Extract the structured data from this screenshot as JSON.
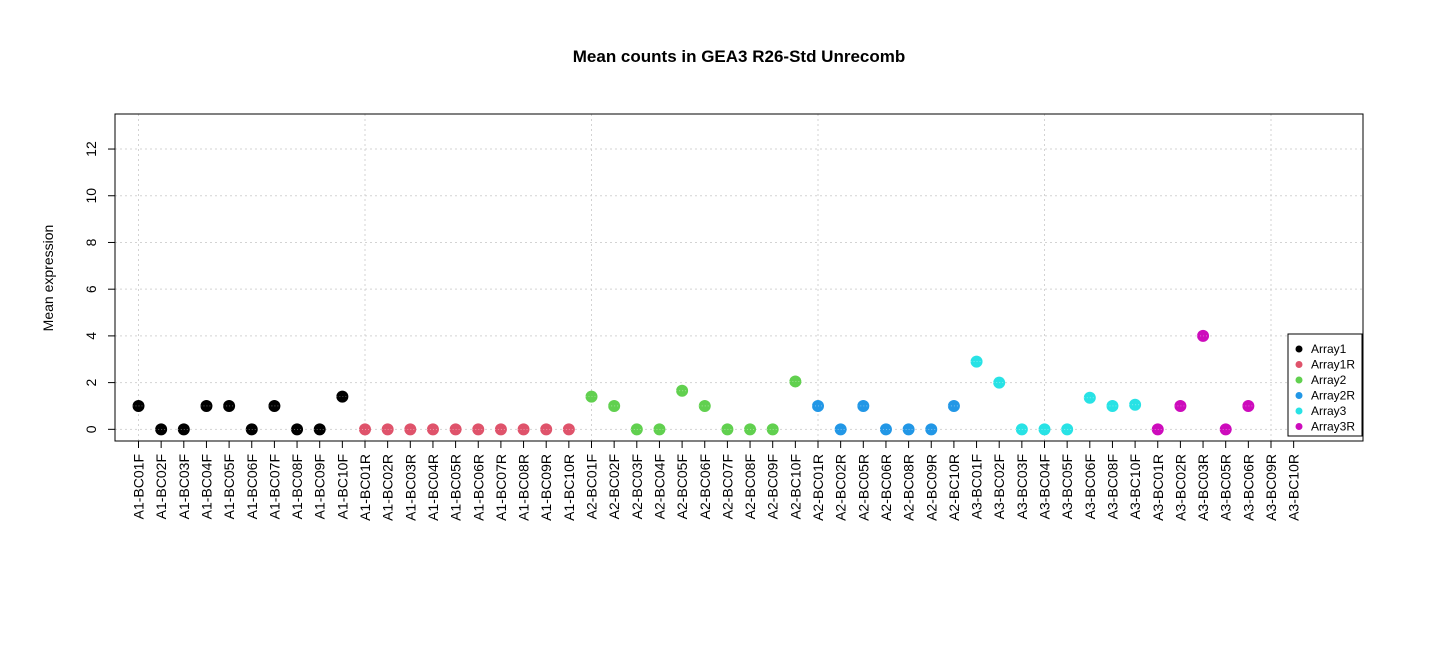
{
  "chart_data": {
    "type": "scatter",
    "title": "Mean counts in GEA3 R26-Std Unrecomb",
    "xlabel": "",
    "ylabel": "Mean expression",
    "ylim": [
      -0.5,
      13.5
    ],
    "yticks": [
      0,
      2,
      4,
      6,
      8,
      10,
      12
    ],
    "grid": true,
    "legend_position": "right",
    "categories": [
      "A1-BC01F",
      "A1-BC02F",
      "A1-BC03F",
      "A1-BC04F",
      "A1-BC05F",
      "A1-BC06F",
      "A1-BC07F",
      "A1-BC08F",
      "A1-BC09F",
      "A1-BC10F",
      "A1-BC01R",
      "A1-BC02R",
      "A1-BC03R",
      "A1-BC04R",
      "A1-BC05R",
      "A1-BC06R",
      "A1-BC07R",
      "A1-BC08R",
      "A1-BC09R",
      "A1-BC10R",
      "A2-BC01F",
      "A2-BC02F",
      "A2-BC03F",
      "A2-BC04F",
      "A2-BC05F",
      "A2-BC06F",
      "A2-BC07F",
      "A2-BC08F",
      "A2-BC09F",
      "A2-BC10F",
      "A2-BC01R",
      "A2-BC02R",
      "A2-BC05R",
      "A2-BC06R",
      "A2-BC08R",
      "A2-BC09R",
      "A2-BC10R",
      "A3-BC01F",
      "A3-BC02F",
      "A3-BC03F",
      "A3-BC04F",
      "A3-BC05F",
      "A3-BC06F",
      "A3-BC08F",
      "A3-BC10F",
      "A3-BC01R",
      "A3-BC02R",
      "A3-BC03R",
      "A3-BC05R",
      "A3-BC06R",
      "A3-BC09R",
      "A3-BC10R"
    ],
    "series": [
      {
        "name": "Array1",
        "color": "#000000",
        "start": 0,
        "values": [
          1,
          0,
          0,
          1,
          1,
          0,
          1,
          0,
          0,
          1.4
        ]
      },
      {
        "name": "Array1R",
        "color": "#DF536B",
        "start": 10,
        "values": [
          0,
          0,
          0,
          0,
          0,
          0,
          0,
          0,
          0,
          0
        ]
      },
      {
        "name": "Array2",
        "color": "#61D04F",
        "start": 20,
        "values": [
          1.4,
          1,
          0,
          0,
          1.65,
          1,
          0,
          0,
          0,
          2.05
        ]
      },
      {
        "name": "Array2R",
        "color": "#2297E6",
        "start": 30,
        "values": [
          1,
          0,
          1,
          0,
          0,
          0,
          1
        ]
      },
      {
        "name": "Array3",
        "color": "#28E2E5",
        "start": 37,
        "values": [
          2.9,
          2,
          0,
          0,
          0,
          1.35,
          1,
          1.05
        ]
      },
      {
        "name": "Array3R",
        "color": "#CD0BBC",
        "start": 45,
        "values": [
          0,
          1,
          4,
          0,
          1,
          null,
          null
        ]
      }
    ]
  }
}
